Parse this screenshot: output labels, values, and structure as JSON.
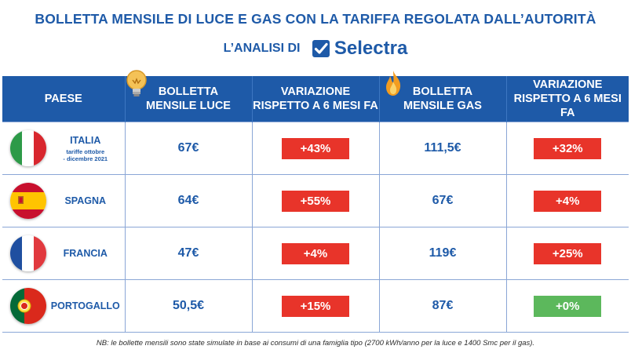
{
  "title": "BOLLETTA MENSILE DI LUCE E GAS CON LA TARIFFA REGOLATA DALL’AUTORITÀ",
  "subtitle_prefix": "L’ANALISI DI",
  "brand": "Selectra",
  "headers": {
    "country": "PAESE",
    "elec_bill_1": "BOLLETTA",
    "elec_bill_2": "MENSILE LUCE",
    "elec_var_1": "VARIAZIONE",
    "elec_var_2": "RISPETTO A 6 MESI FA",
    "gas_bill_1": "BOLLETTA",
    "gas_bill_2": "MENSILE GAS",
    "gas_var_1": "VARIAZIONE",
    "gas_var_2": "RISPETTO A 6 MESI FA"
  },
  "rows": [
    {
      "country": "ITALIA",
      "note_1": "tariffe ottobre",
      "note_2": "- dicembre 2021",
      "elec_bill": "67€",
      "elec_var": "+43%",
      "gas_bill": "111,5€",
      "gas_var": "+32%"
    },
    {
      "country": "SPAGNA",
      "elec_bill": "64€",
      "elec_var": "+55%",
      "gas_bill": "67€",
      "gas_var": "+4%"
    },
    {
      "country": "FRANCIA",
      "elec_bill": "47€",
      "elec_var": "+4%",
      "gas_bill": "119€",
      "gas_var": "+25%"
    },
    {
      "country": "PORTOGALLO",
      "elec_bill": "50,5€",
      "elec_var": "+15%",
      "gas_bill": "87€",
      "gas_var": "+0%"
    }
  ],
  "colors": {
    "brand_blue": "#1e5aa8",
    "increase_red": "#e8342a",
    "neutral_green": "#5cb85c"
  },
  "icons": {
    "electricity": "light-bulb-icon",
    "gas": "flame-icon",
    "brand": "checkmark-icon"
  },
  "footnote": "NB: le bollette mensili sono state simulate in base ai consumi di una famiglia tipo (2700 kWh/anno per la luce e 1400 Smc per il gas)."
}
